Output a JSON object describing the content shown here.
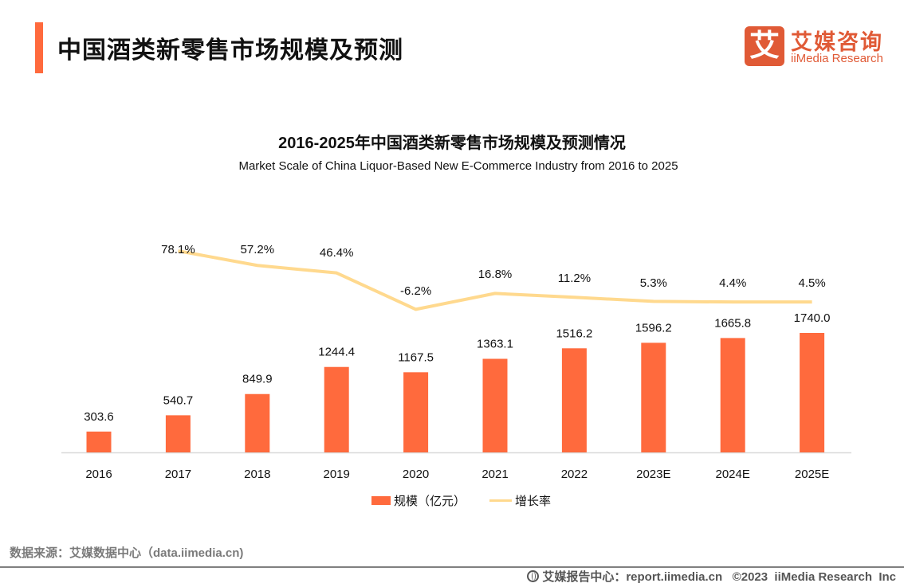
{
  "header": {
    "title": "中国酒类新零售市场规模及预测",
    "accent_color": "#ff6a3d"
  },
  "logo": {
    "mark": "艾",
    "name_cn": "艾媒咨询",
    "name_en": "iiMedia Research",
    "color": "#e05a36"
  },
  "chart_data": {
    "type": "bar",
    "title": "2016-2025年中国酒类新零售市场规模及预测情况",
    "subtitle": "Market Scale of China  Liquor-Based New E-Commerce Industry from 2016 to 2025",
    "xlabel": "",
    "ylabel": "",
    "categories": [
      "2016",
      "2017",
      "2018",
      "2019",
      "2020",
      "2021",
      "2022",
      "2023E",
      "2024E",
      "2025E"
    ],
    "series": [
      {
        "name": "规模（亿元）",
        "type": "bar",
        "color": "#ff6a3d",
        "values": [
          303.6,
          540.7,
          849.9,
          1244.4,
          1167.5,
          1363.1,
          1516.2,
          1596.2,
          1665.8,
          1740.0
        ],
        "labels": [
          "303.6",
          "540.7",
          "849.9",
          "1244.4",
          "1167.5",
          "1363.1",
          "1516.2",
          "1596.2",
          "1665.8",
          "1740.0"
        ]
      },
      {
        "name": "增长率",
        "type": "line",
        "color": "#ffd98e",
        "values": [
          null,
          78.1,
          57.2,
          46.4,
          -6.2,
          16.8,
          11.2,
          5.3,
          4.4,
          4.5
        ],
        "labels": [
          null,
          "78.1%",
          "57.2%",
          "46.4%",
          "-6.2%",
          "16.8%",
          "11.2%",
          "5.3%",
          "4.4%",
          "4.5%"
        ]
      }
    ],
    "ylim": [
      0,
      2000
    ],
    "grid": false,
    "legend_position": "bottom"
  },
  "legend": {
    "bar_label": "规模（亿元）",
    "line_label": "增长率"
  },
  "source": "数据来源：艾媒数据中心（data.iimedia.cn)",
  "footer": {
    "text": "艾媒报告中心：report.iimedia.cn   ©2023  iiMedia Research  Inc"
  }
}
